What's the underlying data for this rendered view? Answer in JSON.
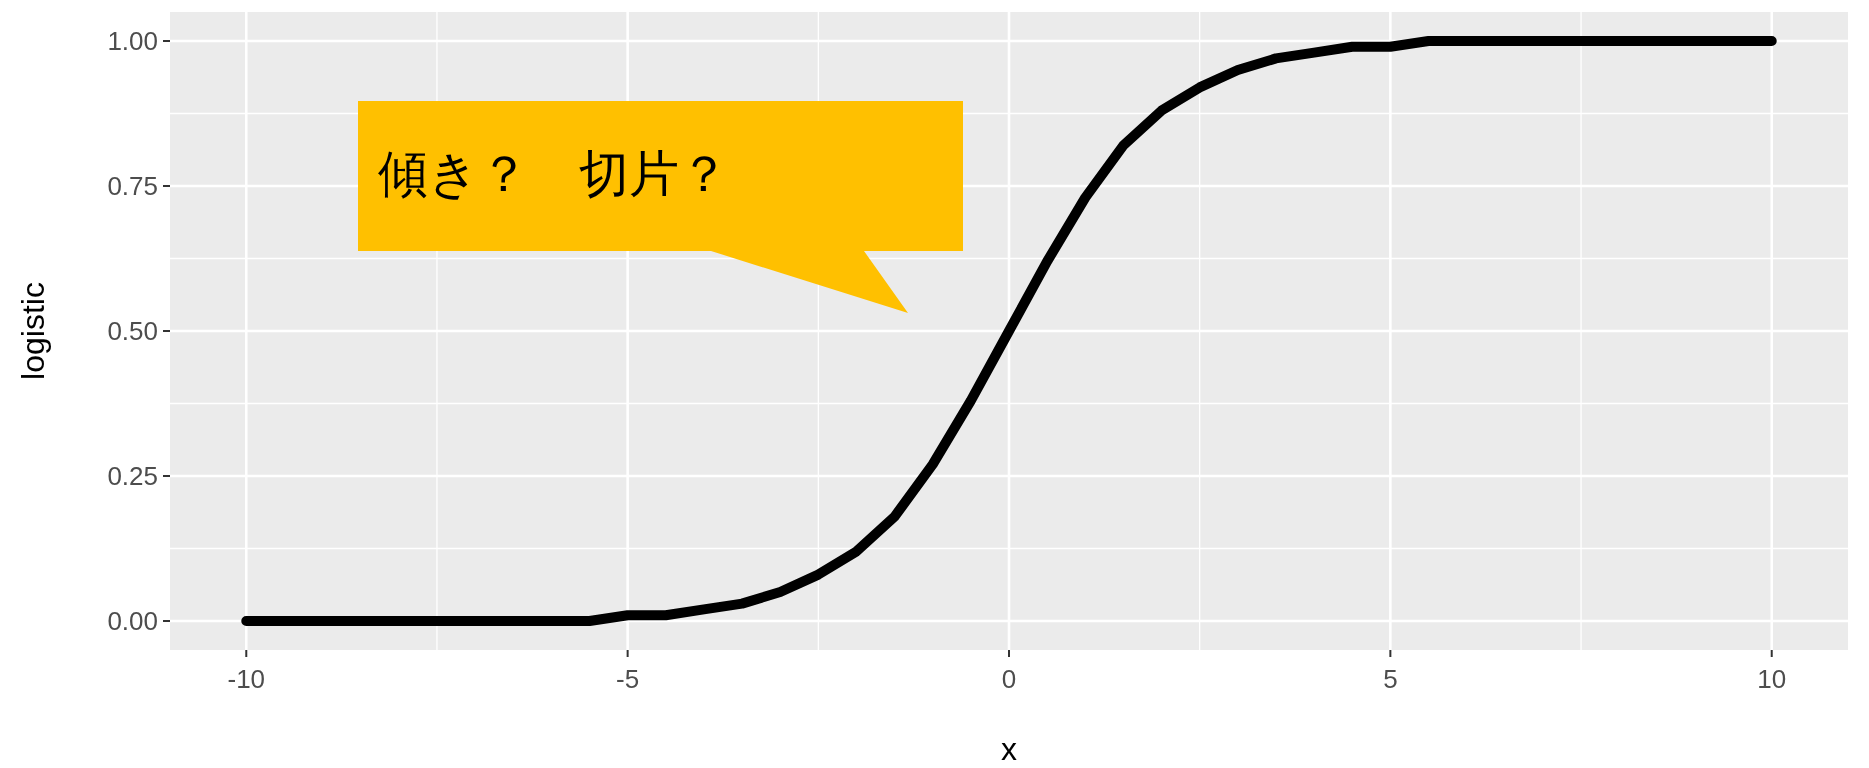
{
  "chart_data": {
    "type": "line",
    "xlabel": "x",
    "ylabel": "logistic",
    "xlim": [
      -11,
      11
    ],
    "ylim": [
      -0.05,
      1.05
    ],
    "xticks": [
      -10,
      -5,
      0,
      5,
      10
    ],
    "yticks": [
      {
        "value": 0,
        "label": "0.00"
      },
      {
        "value": 0.25,
        "label": "0.25"
      },
      {
        "value": 0.5,
        "label": "0.50"
      },
      {
        "value": 0.75,
        "label": "0.75"
      },
      {
        "value": 1,
        "label": "1.00"
      }
    ],
    "grid": true,
    "x": [
      -10,
      -9.5,
      -9,
      -8.5,
      -8,
      -7.5,
      -7,
      -6.5,
      -6,
      -5.5,
      -5,
      -4.5,
      -4,
      -3.5,
      -3,
      -2.5,
      -2,
      -1.5,
      -1,
      -0.5,
      0,
      0.5,
      1,
      1.5,
      2,
      2.5,
      3,
      3.5,
      4,
      4.5,
      5,
      5.5,
      6,
      6.5,
      7,
      7.5,
      8,
      8.5,
      9,
      9.5,
      10
    ],
    "series": [
      {
        "color": "#000000",
        "values": [
          0,
          0,
          0,
          0,
          0,
          0,
          0,
          0,
          0,
          0,
          0.01,
          0.01,
          0.02,
          0.03,
          0.05,
          0.08,
          0.12,
          0.18,
          0.27,
          0.38,
          0.5,
          0.62,
          0.73,
          0.82,
          0.88,
          0.92,
          0.95,
          0.97,
          0.98,
          0.99,
          0.99,
          1,
          1,
          1,
          1,
          1,
          1,
          1,
          1,
          1,
          1
        ]
      }
    ],
    "annotations": [
      "傾き？　切片？"
    ]
  }
}
